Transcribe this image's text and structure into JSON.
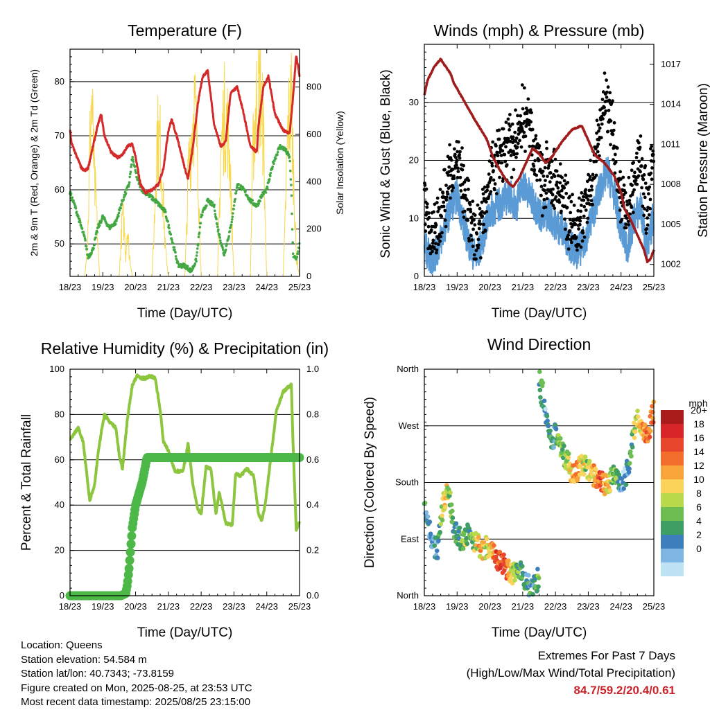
{
  "chart_data": [
    {
      "type": "line",
      "title": "Temperature (F)",
      "xlabel": "Time (Day/UTC)",
      "ylabel": "2m & 9m T (Red, Orange) & 2m Td (Green)",
      "y2label": "Solar Insolation (Yellow)",
      "x_ticks": [
        "18/23",
        "19/23",
        "20/23",
        "21/23",
        "22/23",
        "23/23",
        "24/23",
        "25/23"
      ],
      "ylim": [
        44,
        86
      ],
      "y_ticks": [
        50,
        60,
        70,
        80
      ],
      "y2lim": [
        0,
        960
      ],
      "y2_ticks": [
        0,
        200,
        400,
        600,
        800
      ],
      "grid": true,
      "series": [
        {
          "name": "2m T",
          "color": "#d42a2a",
          "x": [
            0,
            0.05,
            0.15,
            0.25,
            0.35,
            0.45,
            0.55,
            0.7,
            0.85,
            0.95,
            1.05,
            1.25,
            1.45,
            1.6,
            1.75,
            1.9,
            2.0,
            2.15,
            2.3,
            2.5,
            2.7,
            2.85,
            3.0,
            3.1,
            3.3,
            3.5,
            3.6,
            3.75,
            3.9,
            4.05,
            4.2,
            4.4,
            4.6,
            4.75,
            4.9,
            5.1,
            5.3,
            5.5,
            5.7,
            5.75,
            5.9,
            6.05,
            6.25,
            6.5,
            6.7,
            6.8,
            6.9,
            7.0
          ],
          "values": [
            71,
            68.5,
            67,
            65.5,
            64,
            63.5,
            64,
            68,
            72,
            74,
            70,
            67,
            66,
            66.5,
            68,
            68.5,
            66,
            61,
            59.5,
            60,
            61,
            64,
            71,
            73,
            69,
            64,
            62,
            68,
            76,
            81,
            82,
            72,
            68,
            69,
            78,
            79,
            74,
            68,
            67,
            72,
            79,
            81,
            74,
            71,
            70.5,
            77,
            85,
            81
          ]
        },
        {
          "name": "2m Td",
          "color": "#43a843",
          "x": [
            0,
            0.15,
            0.3,
            0.45,
            0.55,
            0.7,
            0.85,
            1.0,
            1.2,
            1.4,
            1.6,
            1.8,
            1.9,
            2.05,
            2.2,
            2.4,
            2.6,
            2.75,
            2.9,
            3.1,
            3.3,
            3.5,
            3.7,
            3.85,
            4.0,
            4.2,
            4.4,
            4.5,
            4.7,
            4.9,
            5.1,
            5.3,
            5.5,
            5.7,
            5.85,
            6.0,
            6.2,
            6.4,
            6.55,
            6.7,
            6.75,
            6.8,
            6.9,
            7.0
          ],
          "values": [
            59.5,
            57,
            54,
            51,
            47.5,
            49,
            53,
            55,
            53,
            54,
            58,
            61,
            66,
            62,
            60,
            59,
            58,
            57,
            56,
            51,
            46,
            46,
            45,
            47,
            55,
            58,
            57,
            53,
            48,
            53,
            61,
            60,
            58,
            57,
            59,
            60,
            65,
            68,
            67.5,
            66,
            60,
            48,
            47,
            50
          ]
        },
        {
          "name": "Solar Insolation",
          "axis": "y2",
          "color": "#f7d84c",
          "x": [
            0,
            0.45,
            0.55,
            0.6,
            0.65,
            0.7,
            0.75,
            0.8,
            0.85,
            0.9,
            1.0,
            1.5,
            1.55,
            1.6,
            1.65,
            1.7,
            1.75,
            1.8,
            1.9,
            2.5,
            2.55,
            2.6,
            2.65,
            2.75,
            2.85,
            2.9,
            3.0,
            3.5,
            3.55,
            3.6,
            3.7,
            3.8,
            3.9,
            3.95,
            4.0,
            4.5,
            4.55,
            4.6,
            4.7,
            4.8,
            4.9,
            4.95,
            5.0,
            5.5,
            5.55,
            5.6,
            5.7,
            5.8,
            5.9,
            5.95,
            6.0,
            6.5,
            6.55,
            6.6,
            6.65,
            6.75,
            6.8,
            6.9,
            7.0
          ],
          "values": [
            0,
            0,
            250,
            600,
            880,
            700,
            450,
            350,
            150,
            0,
            0,
            0,
            150,
            300,
            250,
            100,
            250,
            120,
            0,
            0,
            180,
            400,
            700,
            650,
            350,
            150,
            0,
            0,
            200,
            500,
            700,
            850,
            600,
            250,
            0,
            0,
            300,
            600,
            800,
            750,
            500,
            200,
            0,
            0,
            400,
            700,
            880,
            920,
            700,
            300,
            0,
            0,
            200,
            500,
            750,
            880,
            600,
            100,
            0
          ]
        }
      ]
    },
    {
      "type": "scatter",
      "title": "Winds (mph) & Pressure (mb)",
      "xlabel": "Time (Day/UTC)",
      "ylabel": "Sonic Wind & Gust (Blue, Black)",
      "y2label": "Station Pressure (Maroon)",
      "x_ticks": [
        "18/23",
        "19/23",
        "20/23",
        "21/23",
        "22/23",
        "23/23",
        "24/23",
        "25/23"
      ],
      "ylim": [
        0,
        40
      ],
      "y_ticks": [
        0,
        10,
        20,
        30
      ],
      "y2lim": [
        1001.1,
        1018.5
      ],
      "y2_ticks": [
        1002,
        1005,
        1008,
        1011,
        1014,
        1017
      ],
      "grid": true,
      "series": [
        {
          "name": "Sonic Wind",
          "color": "#5b9bd5",
          "x": [
            0,
            0.2,
            0.35,
            0.55,
            0.8,
            1.0,
            1.2,
            1.4,
            1.6,
            1.8,
            2.0,
            2.2,
            2.4,
            2.6,
            2.8,
            3.0,
            3.2,
            3.4,
            3.6,
            3.8,
            4.0,
            4.2,
            4.4,
            4.6,
            4.8,
            5.0,
            5.2,
            5.4,
            5.6,
            5.8,
            6.0,
            6.2,
            6.4,
            6.6,
            6.8,
            7.0
          ],
          "values": [
            5,
            3,
            4,
            7,
            12,
            14,
            9,
            5,
            3,
            7,
            11,
            12,
            13,
            14,
            12,
            16,
            14,
            12,
            10,
            11,
            9,
            8,
            6,
            4,
            5,
            8,
            12,
            16,
            18,
            14,
            8,
            5,
            10,
            12,
            4,
            11
          ]
        },
        {
          "name": "Gust",
          "color": "#000000",
          "x": [
            0,
            0.2,
            0.35,
            0.55,
            0.8,
            1.0,
            1.2,
            1.4,
            1.6,
            1.8,
            2.0,
            2.2,
            2.4,
            2.6,
            2.8,
            3.0,
            3.2,
            3.4,
            3.6,
            3.8,
            4.0,
            4.2,
            4.4,
            4.6,
            4.8,
            5.0,
            5.2,
            5.4,
            5.6,
            5.8,
            6.0,
            6.2,
            6.4,
            6.6,
            6.8,
            7.0
          ],
          "values": [
            14,
            6,
            8,
            12,
            18,
            21,
            14,
            9,
            6,
            12,
            17,
            20,
            21,
            23,
            22,
            28,
            26,
            20,
            16,
            17,
            16,
            14,
            11,
            8,
            9,
            14,
            20,
            28,
            30,
            22,
            14,
            10,
            18,
            20,
            10,
            23
          ]
        },
        {
          "name": "Station Pressure",
          "axis": "y2",
          "color": "#a01c1c",
          "x": [
            0,
            0.1,
            0.3,
            0.5,
            0.6,
            0.8,
            0.9,
            1.2,
            1.5,
            1.7,
            1.9,
            2.1,
            2.3,
            2.5,
            2.7,
            2.9,
            3.1,
            3.3,
            3.5,
            3.7,
            3.9,
            4.2,
            4.5,
            4.8,
            5.0,
            5.2,
            5.5,
            5.8,
            6.0,
            6.1,
            6.3,
            6.5,
            6.7,
            6.8,
            6.9,
            7.0
          ],
          "values": [
            1014.7,
            1015.8,
            1016.8,
            1017.4,
            1017.0,
            1016.3,
            1015.6,
            1014.3,
            1013.0,
            1012.2,
            1011.4,
            1010.0,
            1009.1,
            1008.3,
            1007.8,
            1008.5,
            1009.6,
            1010.7,
            1010.3,
            1009.6,
            1010.1,
            1011.2,
            1012.1,
            1012.4,
            1011.3,
            1010.2,
            1009.6,
            1008.6,
            1007.4,
            1006.2,
            1005.3,
            1004.2,
            1003.1,
            1002.2,
            1002.4,
            1003.1
          ]
        }
      ]
    },
    {
      "type": "line",
      "title": "Relative Humidity (%) & Precipitation (in)",
      "xlabel": "Time (Day/UTC)",
      "ylabel": "Percent & Total Rainfall",
      "x_ticks": [
        "18/23",
        "19/23",
        "20/23",
        "21/23",
        "22/23",
        "23/23",
        "24/23",
        "25/23"
      ],
      "ylim": [
        0,
        100
      ],
      "y_ticks": [
        0,
        20,
        40,
        60,
        80,
        100
      ],
      "y2lim": [
        0,
        1.0
      ],
      "y2_ticks": [
        "0.0",
        "0.2",
        "0.4",
        "0.6",
        "0.8",
        "1.0"
      ],
      "grid": true,
      "series": [
        {
          "name": "Relative Humidity",
          "color": "#8cc63f",
          "x": [
            0,
            0.1,
            0.25,
            0.4,
            0.5,
            0.6,
            0.75,
            0.85,
            0.95,
            1.05,
            1.2,
            1.4,
            1.5,
            1.6,
            1.75,
            1.9,
            2.05,
            2.2,
            2.3,
            2.45,
            2.6,
            2.75,
            2.85,
            3.0,
            3.2,
            3.45,
            3.6,
            3.75,
            3.9,
            4.0,
            4.15,
            4.3,
            4.45,
            4.55,
            4.75,
            4.95,
            5.05,
            5.2,
            5.4,
            5.6,
            5.75,
            5.85,
            5.95,
            6.1,
            6.3,
            6.5,
            6.65,
            6.75,
            6.8,
            6.9,
            7.0
          ],
          "values": [
            69,
            71,
            74,
            68,
            55,
            42,
            49,
            62,
            72,
            80,
            77,
            74,
            62,
            56,
            78,
            93,
            97,
            96,
            96,
            97,
            96,
            82,
            68,
            64,
            55,
            55,
            67,
            49,
            38,
            36,
            57,
            56,
            36,
            46,
            32,
            31,
            54,
            53,
            56,
            53,
            36,
            33,
            40,
            58,
            82,
            90,
            92,
            93,
            68,
            29,
            33
          ]
        },
        {
          "name": "Total Rainfall",
          "axis": "y2",
          "color": "#4db848",
          "x": [
            0,
            1.55,
            1.7,
            1.75,
            1.8,
            1.9,
            2.0,
            2.2,
            2.35,
            3.0,
            4.0,
            5.0,
            6.0,
            7.0
          ],
          "values": [
            0.0,
            0.0,
            0.01,
            0.05,
            0.12,
            0.3,
            0.4,
            0.5,
            0.61,
            0.61,
            0.61,
            0.61,
            0.61,
            0.61
          ]
        }
      ]
    },
    {
      "type": "scatter",
      "title": "Wind Direction",
      "xlabel": "Time (Day/UTC)",
      "ylabel": "Direction (Colored By Speed)",
      "x_ticks": [
        "18/23",
        "19/23",
        "20/23",
        "21/23",
        "22/23",
        "23/23",
        "24/23",
        "25/23"
      ],
      "ylim": [
        0,
        360
      ],
      "y_ticks": [
        "North",
        "East",
        "South",
        "West",
        "North"
      ],
      "grid": true,
      "colorbar": {
        "title": "mph",
        "labels": [
          "20+",
          "18",
          "16",
          "14",
          "12",
          "10",
          "8",
          "6",
          "4",
          "2",
          "0"
        ],
        "colors": [
          "#a81c1c",
          "#d7262a",
          "#e8462c",
          "#f36e2d",
          "#f9a43b",
          "#fbd25a",
          "#b8d94a",
          "#6cbd52",
          "#3f9e64",
          "#3d7fbd",
          "#7db6e3",
          "#bfe3f5"
        ]
      },
      "series": [
        {
          "name": "Direction",
          "x": [
            0,
            0.1,
            0.2,
            0.3,
            0.4,
            0.5,
            0.6,
            0.7,
            0.8,
            0.9,
            1.0,
            1.1,
            1.2,
            1.3,
            1.4,
            1.5,
            1.6,
            1.7,
            1.8,
            1.9,
            2.0,
            2.1,
            2.2,
            2.3,
            2.4,
            2.5,
            2.6,
            2.7,
            2.8,
            2.9,
            3.0,
            3.1,
            3.2,
            3.3,
            3.4,
            3.5,
            3.55,
            3.6,
            3.7,
            3.8,
            3.85,
            3.9,
            4.0,
            4.1,
            4.2,
            4.3,
            4.4,
            4.5,
            4.6,
            4.7,
            4.8,
            4.9,
            5.0,
            5.1,
            5.2,
            5.3,
            5.4,
            5.5,
            5.6,
            5.7,
            5.8,
            5.9,
            6.0,
            6.1,
            6.2,
            6.3,
            6.4,
            6.5,
            6.6,
            6.7,
            6.8,
            6.9,
            7.0
          ],
          "values": [
            140,
            120,
            95,
            80,
            70,
            115,
            150,
            170,
            145,
            110,
            95,
            90,
            85,
            95,
            100,
            90,
            85,
            75,
            70,
            80,
            75,
            70,
            60,
            55,
            50,
            45,
            40,
            35,
            40,
            45,
            35,
            20,
            15,
            10,
            20,
            30,
            350,
            320,
            280,
            260,
            250,
            240,
            260,
            250,
            230,
            220,
            210,
            195,
            190,
            200,
            210,
            205,
            200,
            195,
            190,
            185,
            180,
            175,
            180,
            185,
            190,
            180,
            170,
            185,
            200,
            230,
            260,
            290,
            265,
            260,
            250,
            275,
            295
          ],
          "speeds": [
            6,
            5,
            4,
            5,
            6,
            10,
            14,
            12,
            9,
            7,
            6,
            8,
            10,
            9,
            7,
            10,
            12,
            14,
            12,
            11,
            13,
            16,
            18,
            19,
            20,
            17,
            14,
            12,
            9,
            8,
            7,
            6,
            5,
            6,
            7,
            8,
            8,
            6,
            4,
            8,
            6,
            5,
            7,
            9,
            8,
            10,
            12,
            14,
            15,
            16,
            13,
            11,
            10,
            12,
            14,
            16,
            18,
            15,
            12,
            10,
            9,
            8,
            4,
            3,
            5,
            8,
            10,
            12,
            14,
            16,
            18,
            17,
            15
          ]
        }
      ]
    }
  ],
  "extremes": {
    "title": "Extremes For Past 7 Days",
    "subtitle": "(High/Low/Max Wind/Total Precipitation)",
    "values": "84.7/59.2/20.4/0.61"
  },
  "info": {
    "location": "Location: Queens",
    "elevation": "Station elevation: 54.584 m",
    "latlon": "Station lat/lon: 40.7343; -73.8159",
    "created": "Figure created on Mon, 2025-08-25, at 23:53 UTC",
    "timestamp": "Most recent data timestamp: 2025/08/25 23:15:00"
  }
}
